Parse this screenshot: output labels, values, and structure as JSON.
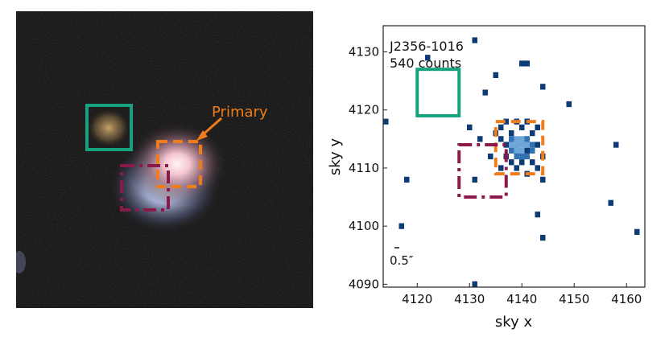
{
  "left_image": {
    "source_label": "Primary",
    "colors": {
      "background": "#0b0a0a",
      "green_box": "#16a27f",
      "orange_box": "#f07c1a",
      "maroon_box": "#8b1a4a",
      "label": "#f07c1a"
    }
  },
  "chart_data": {
    "type": "scatter",
    "title": "",
    "annotation_name": "J2356-1016",
    "annotation_counts": "540 counts",
    "scale_label": "0.5″",
    "xlabel": "sky x",
    "ylabel": "sky y",
    "xlim": [
      4113.5,
      4163.5
    ],
    "ylim": [
      4089.5,
      4134.5
    ],
    "xticks": [
      4120,
      4130,
      4140,
      4150,
      4160
    ],
    "yticks": [
      4090,
      4100,
      4110,
      4120,
      4130
    ],
    "grid": false,
    "colors": {
      "point": "#0d3b76",
      "core_light": "#6fa6d8",
      "core_mid": "#3272b2"
    },
    "points": [
      [
        4131,
        4132
      ],
      [
        4122,
        4129
      ],
      [
        4140,
        4128
      ],
      [
        4141,
        4128
      ],
      [
        4135,
        4126
      ],
      [
        4144,
        4124
      ],
      [
        4133,
        4123
      ],
      [
        4149,
        4121
      ],
      [
        4114,
        4118
      ],
      [
        4130,
        4117
      ],
      [
        4158,
        4114
      ],
      [
        4118,
        4108
      ],
      [
        4131,
        4108
      ],
      [
        4144,
        4108
      ],
      [
        4157,
        4104
      ],
      [
        4143,
        4102
      ],
      [
        4117,
        4100
      ],
      [
        4162,
        4099
      ],
      [
        4144,
        4098
      ],
      [
        4131,
        4090
      ],
      [
        4134,
        4112
      ],
      [
        4135,
        4116
      ],
      [
        4136,
        4117
      ],
      [
        4137,
        4118
      ],
      [
        4138,
        4116
      ],
      [
        4139,
        4118
      ],
      [
        4140,
        4117
      ],
      [
        4141,
        4118
      ],
      [
        4142,
        4116
      ],
      [
        4143,
        4117
      ],
      [
        4136,
        4115
      ],
      [
        4137,
        4114
      ],
      [
        4139,
        4113
      ],
      [
        4141,
        4113
      ],
      [
        4143,
        4114
      ],
      [
        4137,
        4112
      ],
      [
        4138,
        4111
      ],
      [
        4140,
        4111
      ],
      [
        4142,
        4111
      ],
      [
        4144,
        4112
      ],
      [
        4139,
        4110
      ],
      [
        4141,
        4109
      ],
      [
        4143,
        4110
      ],
      [
        4136,
        4110
      ],
      [
        4132,
        4115
      ]
    ],
    "core_pixels": [
      [
        4138,
        4115,
        1
      ],
      [
        4139,
        4115,
        0
      ],
      [
        4140,
        4115,
        0
      ],
      [
        4141,
        4115,
        1
      ],
      [
        4138,
        4114,
        0
      ],
      [
        4139,
        4114,
        0
      ],
      [
        4140,
        4114,
        0
      ],
      [
        4141,
        4114,
        0
      ],
      [
        4142,
        4114,
        1
      ],
      [
        4139,
        4113,
        0
      ],
      [
        4140,
        4113,
        0
      ],
      [
        4140,
        4112,
        1
      ],
      [
        4139,
        4112,
        1
      ],
      [
        4142,
        4113,
        1
      ],
      [
        4138,
        4113,
        1
      ],
      [
        4141,
        4112,
        1
      ]
    ],
    "regions": [
      {
        "name": "background",
        "style": "solid",
        "color": "#16a27f",
        "x0": 4120,
        "y0": 4119,
        "x1": 4128,
        "y1": 4127
      },
      {
        "name": "primary",
        "style": "dashed",
        "color": "#f07c1a",
        "x0": 4135,
        "y0": 4109,
        "x1": 4144,
        "y1": 4118
      },
      {
        "name": "secondary",
        "style": "dashdot",
        "color": "#8b1a4a",
        "x0": 4128,
        "y0": 4105,
        "x1": 4137,
        "y1": 4114
      }
    ]
  }
}
